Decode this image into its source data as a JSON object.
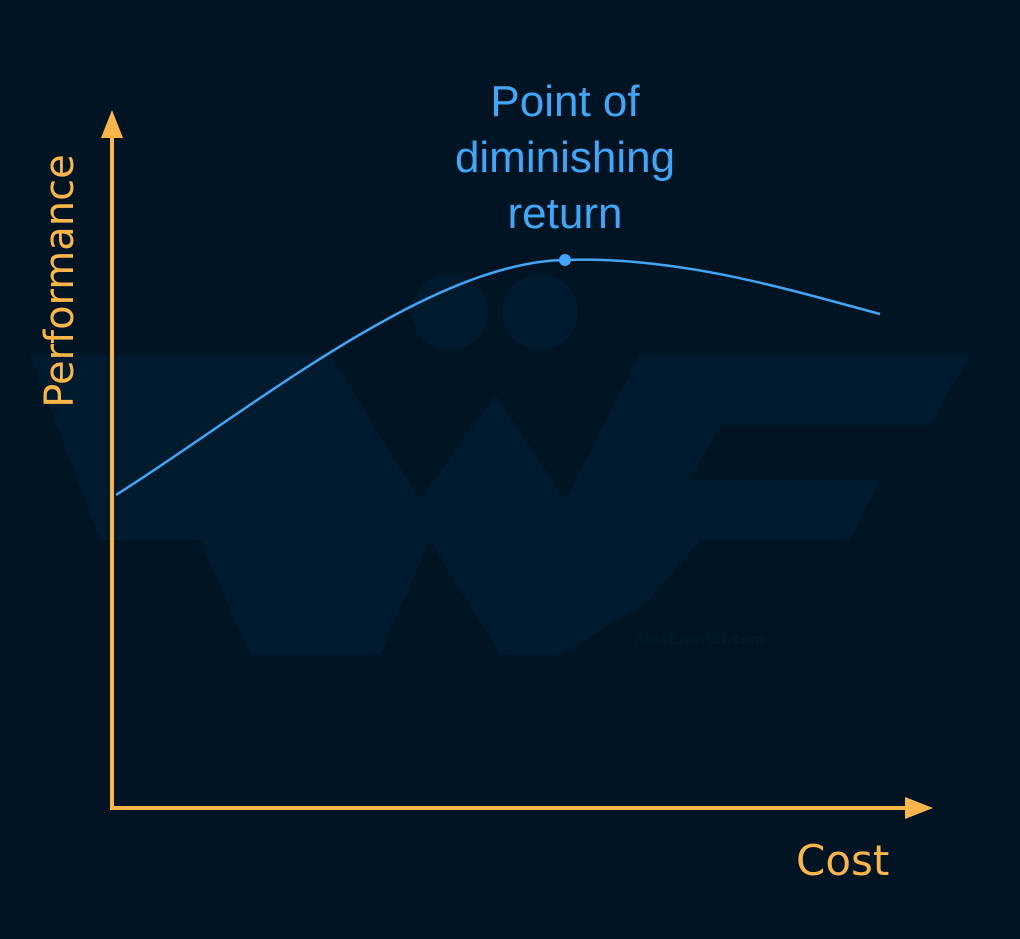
{
  "diagram": {
    "x_axis_label": "Cost",
    "y_axis_label": "Performance",
    "annotation": "Point of diminishing return",
    "annotation_lines": [
      "Point of",
      "diminishing",
      "return"
    ],
    "watermark": "AlexEwerlof.com",
    "colors": {
      "background": "#001424",
      "axes": "#fbb54a",
      "curve": "#42a5f5",
      "watermark": "#001d33"
    }
  }
}
